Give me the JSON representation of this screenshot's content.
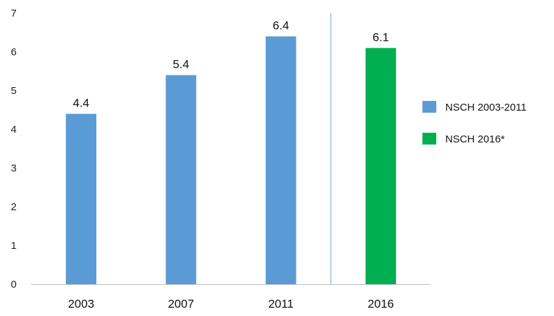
{
  "chart_data": {
    "type": "bar",
    "categories": [
      "2003",
      "2007",
      "2011",
      "2016"
    ],
    "values": [
      4.4,
      5.4,
      6.4,
      6.1
    ],
    "value_labels": [
      "4.4",
      "5.4",
      "6.4",
      "6.1"
    ],
    "series_of_bar": [
      0,
      0,
      0,
      1
    ],
    "series": [
      {
        "name": "NSCH 2003-2011",
        "color": "#5b9bd5"
      },
      {
        "name": "NSCH 2016*",
        "color": "#00b050"
      }
    ],
    "yticks": [
      "0",
      "1",
      "2",
      "3",
      "4",
      "5",
      "6",
      "7"
    ],
    "ylim": [
      0,
      7
    ],
    "grid": false,
    "legend_position": "right",
    "divider_between": [
      "2011",
      "2016"
    ],
    "divider_color": "#9dc3e6",
    "axis_color": "#bfbfbf"
  }
}
